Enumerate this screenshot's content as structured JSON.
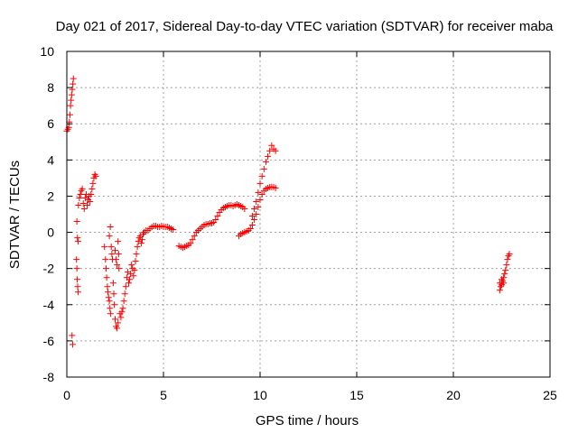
{
  "chart_data": {
    "type": "scatter",
    "title": "Day 021 of 2017, Sidereal Day-to-day VTEC variation (SDTVAR) for receiver maba",
    "xlabel": "GPS time / hours",
    "ylabel": "SDTVAR / TECUs",
    "xlim": [
      0,
      25
    ],
    "ylim": [
      -8,
      10
    ],
    "xticks": [
      0,
      5,
      10,
      15,
      20,
      25
    ],
    "yticks": [
      -8,
      -6,
      -4,
      -2,
      0,
      2,
      4,
      6,
      8,
      10
    ],
    "grid": true,
    "marker": "+",
    "color": "#ff0000",
    "series": [
      {
        "points": [
          [
            0.0,
            5.6
          ],
          [
            0.05,
            5.7
          ],
          [
            0.1,
            5.8
          ],
          [
            0.13,
            6.1
          ],
          [
            0.16,
            6.5
          ],
          [
            0.19,
            7.0
          ],
          [
            0.22,
            7.3
          ],
          [
            0.25,
            7.6
          ],
          [
            0.28,
            7.9
          ],
          [
            0.31,
            8.2
          ],
          [
            0.34,
            8.5
          ],
          [
            0.27,
            -5.7
          ],
          [
            0.3,
            -6.2
          ],
          [
            0.52,
            0.6
          ],
          [
            0.55,
            -0.3
          ],
          [
            0.58,
            -0.5
          ],
          [
            0.5,
            -1.5
          ],
          [
            0.52,
            -2.0
          ],
          [
            0.54,
            -2.6
          ],
          [
            0.56,
            -3.0
          ],
          [
            0.58,
            -3.3
          ],
          [
            0.6,
            1.5
          ],
          [
            0.65,
            1.9
          ],
          [
            0.7,
            2.1
          ],
          [
            0.75,
            2.3
          ],
          [
            0.8,
            2.4
          ],
          [
            0.85,
            1.6
          ],
          [
            0.9,
            1.3
          ],
          [
            0.95,
            1.9
          ],
          [
            1.0,
            2.1
          ],
          [
            1.05,
            1.5
          ],
          [
            1.1,
            1.8
          ],
          [
            1.15,
            2.0
          ],
          [
            1.2,
            1.7
          ],
          [
            1.25,
            2.1
          ],
          [
            1.3,
            2.4
          ],
          [
            1.35,
            2.7
          ],
          [
            1.4,
            3.0
          ],
          [
            1.45,
            3.2
          ],
          [
            1.5,
            3.1
          ],
          [
            1.95,
            -0.8
          ],
          [
            2.0,
            -1.5
          ],
          [
            2.03,
            -2.0
          ],
          [
            2.06,
            -2.5
          ],
          [
            2.1,
            -3.0
          ],
          [
            2.13,
            -3.3
          ],
          [
            2.16,
            -3.6
          ],
          [
            2.2,
            -3.8
          ],
          [
            2.23,
            -4.2
          ],
          [
            2.26,
            -4.5
          ],
          [
            2.2,
            -0.2
          ],
          [
            2.25,
            0.3
          ],
          [
            2.3,
            -0.8
          ],
          [
            2.33,
            -1.2
          ],
          [
            2.36,
            -1.5
          ],
          [
            2.4,
            -2.8
          ],
          [
            2.43,
            -3.4
          ],
          [
            2.46,
            -4.0
          ],
          [
            2.5,
            -4.8
          ],
          [
            2.55,
            -5.2
          ],
          [
            2.6,
            -5.3
          ],
          [
            2.65,
            -5.0
          ],
          [
            2.5,
            -1.0
          ],
          [
            2.55,
            -1.5
          ],
          [
            2.6,
            -1.8
          ],
          [
            2.65,
            -0.5
          ],
          [
            2.68,
            -1.2
          ],
          [
            2.7,
            -2.0
          ],
          [
            2.75,
            -4.5
          ],
          [
            2.8,
            -4.7
          ],
          [
            2.85,
            -4.4
          ],
          [
            2.9,
            -4.2
          ],
          [
            2.95,
            -3.8
          ],
          [
            3.0,
            -3.4
          ],
          [
            3.05,
            -3.0
          ],
          [
            3.1,
            -2.5
          ],
          [
            3.15,
            -2.2
          ],
          [
            3.2,
            -2.8
          ],
          [
            3.25,
            -2.6
          ],
          [
            3.3,
            -2.3
          ],
          [
            3.35,
            -1.8
          ],
          [
            3.4,
            -2.0
          ],
          [
            3.45,
            -2.4
          ],
          [
            3.5,
            -2.1
          ],
          [
            3.55,
            -1.6
          ],
          [
            3.6,
            -1.2
          ],
          [
            3.65,
            -0.8
          ],
          [
            3.7,
            -0.5
          ],
          [
            3.75,
            -0.3
          ],
          [
            3.8,
            -0.2
          ],
          [
            3.85,
            -0.6
          ],
          [
            3.9,
            -0.4
          ],
          [
            3.95,
            -0.1
          ],
          [
            4.0,
            0.0
          ],
          [
            4.1,
            0.1
          ],
          [
            4.2,
            0.1
          ],
          [
            4.3,
            0.2
          ],
          [
            4.4,
            0.3
          ],
          [
            4.5,
            0.35
          ],
          [
            4.6,
            0.35
          ],
          [
            4.7,
            0.3
          ],
          [
            4.8,
            0.3
          ],
          [
            4.9,
            0.35
          ],
          [
            5.0,
            0.3
          ],
          [
            5.1,
            0.3
          ],
          [
            5.2,
            0.3
          ],
          [
            5.3,
            0.25
          ],
          [
            5.4,
            0.2
          ],
          [
            5.5,
            0.15
          ],
          [
            5.8,
            -0.75
          ],
          [
            5.9,
            -0.8
          ],
          [
            6.0,
            -0.85
          ],
          [
            6.1,
            -0.8
          ],
          [
            6.2,
            -0.75
          ],
          [
            6.3,
            -0.7
          ],
          [
            6.4,
            -0.6
          ],
          [
            6.5,
            -0.4
          ],
          [
            6.6,
            -0.2
          ],
          [
            6.7,
            0.0
          ],
          [
            6.8,
            0.1
          ],
          [
            6.9,
            0.2
          ],
          [
            7.0,
            0.3
          ],
          [
            7.1,
            0.4
          ],
          [
            7.2,
            0.45
          ],
          [
            7.3,
            0.45
          ],
          [
            7.4,
            0.5
          ],
          [
            7.5,
            0.5
          ],
          [
            7.6,
            0.55
          ],
          [
            7.7,
            0.7
          ],
          [
            7.8,
            0.9
          ],
          [
            7.9,
            1.1
          ],
          [
            8.0,
            1.25
          ],
          [
            8.1,
            1.35
          ],
          [
            8.2,
            1.4
          ],
          [
            8.3,
            1.45
          ],
          [
            8.4,
            1.5
          ],
          [
            8.5,
            1.5
          ],
          [
            8.6,
            1.45
          ],
          [
            8.7,
            1.5
          ],
          [
            8.8,
            1.55
          ],
          [
            8.9,
            1.5
          ],
          [
            9.0,
            1.45
          ],
          [
            9.1,
            1.4
          ],
          [
            9.2,
            1.3
          ],
          [
            8.9,
            -0.2
          ],
          [
            9.0,
            -0.1
          ],
          [
            9.1,
            -0.05
          ],
          [
            9.2,
            0.0
          ],
          [
            9.3,
            0.05
          ],
          [
            9.4,
            0.1
          ],
          [
            9.5,
            0.2
          ],
          [
            9.6,
            0.4
          ],
          [
            9.7,
            0.7
          ],
          [
            9.8,
            1.0
          ],
          [
            9.9,
            1.4
          ],
          [
            10.0,
            1.8
          ],
          [
            10.1,
            2.1
          ],
          [
            10.2,
            2.3
          ],
          [
            10.3,
            2.4
          ],
          [
            10.4,
            2.45
          ],
          [
            10.5,
            2.5
          ],
          [
            10.6,
            2.5
          ],
          [
            10.7,
            2.5
          ],
          [
            10.8,
            2.45
          ],
          [
            9.6,
            0.9
          ],
          [
            9.7,
            1.3
          ],
          [
            9.8,
            1.7
          ],
          [
            9.9,
            2.2
          ],
          [
            10.0,
            2.7
          ],
          [
            10.1,
            3.1
          ],
          [
            10.2,
            3.5
          ],
          [
            10.3,
            3.9
          ],
          [
            10.4,
            4.2
          ],
          [
            10.5,
            4.5
          ],
          [
            10.6,
            4.8
          ],
          [
            10.7,
            4.6
          ],
          [
            10.8,
            4.5
          ],
          [
            22.4,
            -3.2
          ],
          [
            22.45,
            -3.0
          ],
          [
            22.5,
            -2.9
          ],
          [
            22.55,
            -2.7
          ],
          [
            22.6,
            -2.5
          ],
          [
            22.65,
            -2.3
          ],
          [
            22.7,
            -2.1
          ],
          [
            22.75,
            -1.8
          ],
          [
            22.8,
            -1.5
          ],
          [
            22.85,
            -1.3
          ],
          [
            22.9,
            -1.2
          ],
          [
            22.4,
            -2.8
          ],
          [
            22.5,
            -2.6
          ],
          [
            22.6,
            -2.8
          ]
        ]
      }
    ]
  }
}
